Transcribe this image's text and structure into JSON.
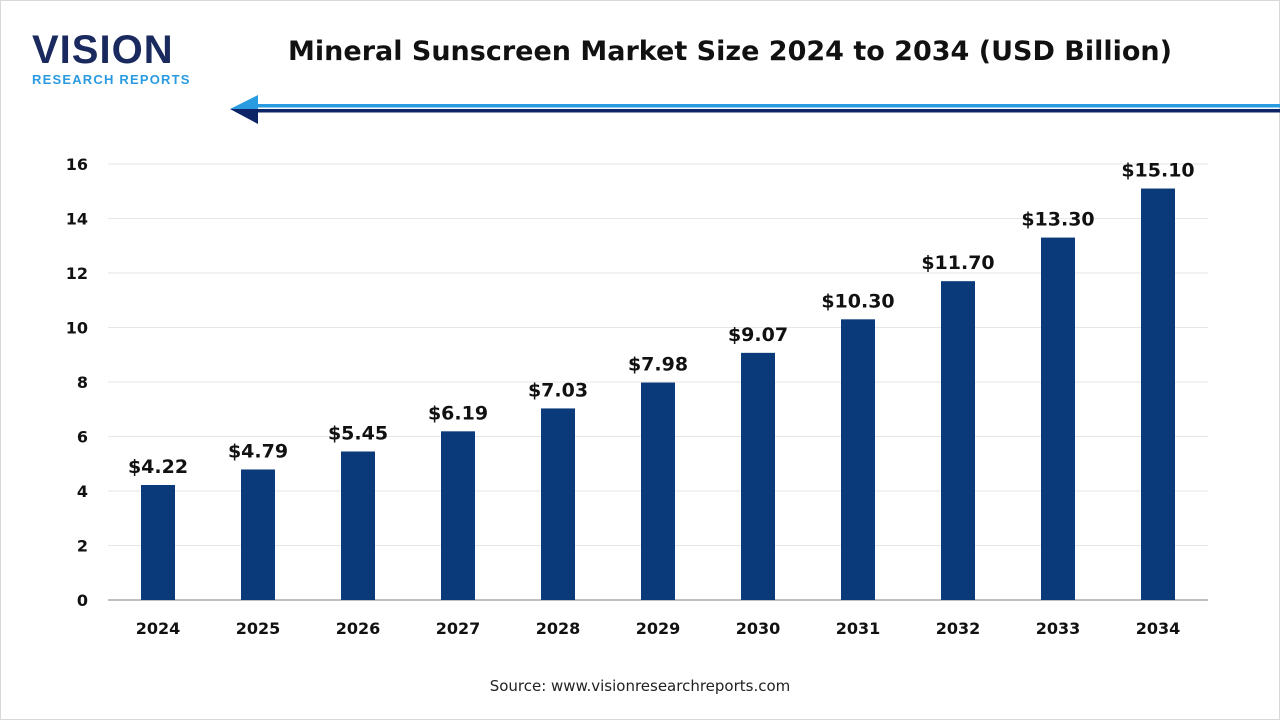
{
  "logo": {
    "line1": "VISION",
    "line2": "RESEARCH REPORTS"
  },
  "title": "Mineral Sunscreen Market Size 2024 to 2034 (USD Billion)",
  "source": "Source: www.visionresearchreports.com",
  "colors": {
    "bar": "#0a3a7a",
    "accent_light": "#2a9be0",
    "accent_dark": "#0d2466",
    "grid": "#e6e6e6"
  },
  "chart_data": {
    "type": "bar",
    "title": "Mineral Sunscreen Market Size 2024 to 2034 (USD Billion)",
    "categories": [
      "2024",
      "2025",
      "2026",
      "2027",
      "2028",
      "2029",
      "2030",
      "2031",
      "2032",
      "2033",
      "2034"
    ],
    "values": [
      4.22,
      4.79,
      5.45,
      6.19,
      7.03,
      7.98,
      9.07,
      10.3,
      11.7,
      13.3,
      15.1
    ],
    "data_labels": [
      "$4.22",
      "$4.79",
      "$5.45",
      "$6.19",
      "$7.03",
      "$7.98",
      "$9.07",
      "$10.30",
      "$11.70",
      "$13.30",
      "$15.10"
    ],
    "ylim": [
      0,
      16
    ],
    "yticks": [
      0,
      2,
      4,
      6,
      8,
      10,
      12,
      14,
      16
    ],
    "grid": true,
    "xlabel": "",
    "ylabel": ""
  }
}
